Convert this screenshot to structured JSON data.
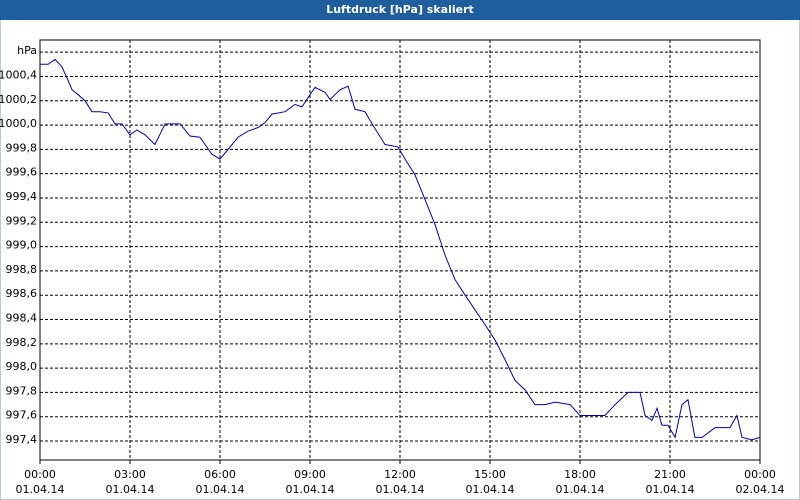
{
  "chart_data": {
    "type": "line",
    "title": "Luftdruck [hPa] skaliert",
    "x": [
      0,
      0.27,
      0.5,
      0.73,
      0.93,
      1.07,
      1.27,
      1.5,
      1.73,
      2.0,
      2.27,
      2.5,
      2.73,
      3.0,
      3.23,
      3.5,
      3.83,
      4.17,
      4.67,
      5.0,
      5.33,
      5.73,
      6.0,
      6.27,
      6.6,
      6.93,
      7.27,
      7.5,
      7.73,
      8.17,
      8.5,
      8.73,
      9.0,
      9.17,
      9.5,
      9.67,
      9.83,
      10.0,
      10.27,
      10.5,
      10.83,
      11.17,
      11.5,
      11.93,
      12.17,
      12.5,
      12.83,
      13.17,
      13.5,
      13.83,
      14.17,
      14.5,
      14.83,
      15.17,
      15.5,
      15.83,
      16.17,
      16.5,
      16.83,
      17.17,
      17.67,
      18.0,
      18.83,
      19.17,
      19.6,
      20.0,
      20.17,
      20.4,
      20.57,
      20.73,
      20.93,
      21.17,
      21.4,
      21.6,
      21.83,
      22.07,
      22.5,
      23.0,
      23.23,
      23.4,
      23.73,
      24.0
    ],
    "series": [
      {
        "color": "#0000c0",
        "values": [
          1000.5,
          1000.5,
          1000.54,
          1000.48,
          1000.37,
          1000.29,
          1000.25,
          1000.2,
          1000.11,
          1000.11,
          1000.1,
          1000.01,
          1000.01,
          999.92,
          999.96,
          999.92,
          999.84,
          1000.01,
          1000.01,
          999.91,
          999.9,
          999.76,
          999.72,
          999.8,
          999.9,
          999.95,
          999.98,
          1000.02,
          1000.09,
          1000.11,
          1000.17,
          1000.15,
          1000.25,
          1000.31,
          1000.27,
          1000.21,
          1000.25,
          1000.29,
          1000.32,
          1000.13,
          1000.11,
          999.97,
          999.84,
          999.82,
          999.72,
          999.59,
          999.39,
          999.18,
          998.93,
          998.73,
          998.6,
          998.48,
          998.36,
          998.23,
          998.07,
          997.9,
          997.82,
          997.7,
          997.7,
          997.72,
          997.7,
          997.61,
          997.61,
          997.7,
          997.8,
          997.8,
          997.61,
          997.57,
          997.67,
          997.53,
          997.53,
          997.43,
          997.7,
          997.74,
          997.43,
          997.43,
          997.51,
          997.51,
          997.61,
          997.43,
          997.41,
          997.43
        ]
      }
    ],
    "xlim": [
      0,
      24
    ],
    "xticks": [
      {
        "value": 0,
        "label": [
          "00:00",
          "01.04.14"
        ]
      },
      {
        "value": 3,
        "label": [
          "03:00",
          "01.04.14"
        ]
      },
      {
        "value": 6,
        "label": [
          "06:00",
          "01.04.14"
        ]
      },
      {
        "value": 9,
        "label": [
          "09:00",
          "01.04.14"
        ]
      },
      {
        "value": 12,
        "label": [
          "12:00",
          "01.04.14"
        ]
      },
      {
        "value": 15,
        "label": [
          "15:00",
          "01.04.14"
        ]
      },
      {
        "value": 18,
        "label": [
          "18:00",
          "01.04.14"
        ]
      },
      {
        "value": 21,
        "label": [
          "21:00",
          "01.04.14"
        ]
      },
      {
        "value": 24,
        "label": [
          "00:00",
          "02.04.14"
        ]
      }
    ],
    "ylim": [
      997.244,
      1000.7
    ],
    "yticks": [
      {
        "value": 997.4,
        "label": "997,4"
      },
      {
        "value": 997.6,
        "label": "997,6"
      },
      {
        "value": 997.8,
        "label": "997,8"
      },
      {
        "value": 998.0,
        "label": "998,0"
      },
      {
        "value": 998.2,
        "label": "998,2"
      },
      {
        "value": 998.4,
        "label": "998,4"
      },
      {
        "value": 998.6,
        "label": "998,6"
      },
      {
        "value": 998.8,
        "label": "998,8"
      },
      {
        "value": 999.0,
        "label": "999,0"
      },
      {
        "value": 999.2,
        "label": "999,2"
      },
      {
        "value": 999.4,
        "label": "999,4"
      },
      {
        "value": 999.6,
        "label": "999,6"
      },
      {
        "value": 999.8,
        "label": "999,8"
      },
      {
        "value": 1000.0,
        "label": "1000,0"
      },
      {
        "value": 1000.2,
        "label": "1000,2"
      },
      {
        "value": 1000.4,
        "label": "1000,4"
      },
      {
        "value": 1000.6,
        "label": "hPa"
      }
    ],
    "grid": true
  }
}
